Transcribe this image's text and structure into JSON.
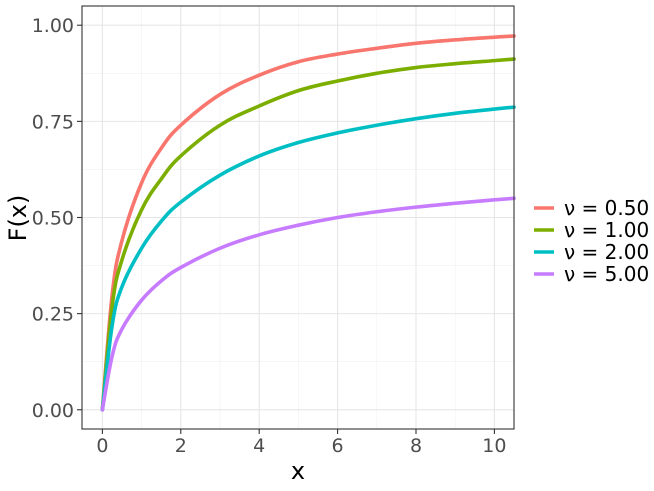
{
  "chart_data": {
    "type": "line",
    "xlabel": "x",
    "ylabel": "F(x)",
    "xlim": [
      -0.52,
      10.5
    ],
    "ylim": [
      -0.05,
      1.05
    ],
    "x_ticks": [
      0,
      2,
      4,
      6,
      8,
      10
    ],
    "x_tick_labels": [
      "0",
      "2",
      "4",
      "6",
      "8",
      "10"
    ],
    "y_ticks": [
      0,
      0.25,
      0.5,
      0.75,
      1.0
    ],
    "y_tick_labels": [
      "0.00",
      "0.25",
      "0.50",
      "0.75",
      "1.00"
    ],
    "grid": true,
    "legend_position": "right",
    "series": [
      {
        "name": "ν = 0.50",
        "color": "#F8766D",
        "x": [
          0,
          0.25,
          0.5,
          1,
          1.5,
          2,
          3,
          4,
          5,
          6,
          7,
          8,
          9,
          10,
          10.5
        ],
        "y": [
          0,
          0.3,
          0.44,
          0.59,
          0.68,
          0.74,
          0.82,
          0.87,
          0.905,
          0.925,
          0.94,
          0.953,
          0.962,
          0.969,
          0.972
        ]
      },
      {
        "name": "ν = 1.00",
        "color": "#7CAE00",
        "x": [
          0,
          0.25,
          0.5,
          1,
          1.5,
          2,
          3,
          4,
          5,
          6,
          7,
          8,
          9,
          10,
          10.5
        ],
        "y": [
          0,
          0.27,
          0.39,
          0.52,
          0.6,
          0.66,
          0.74,
          0.79,
          0.83,
          0.855,
          0.875,
          0.89,
          0.9,
          0.908,
          0.912
        ]
      },
      {
        "name": "ν = 2.00",
        "color": "#00BFC4",
        "x": [
          0,
          0.25,
          0.5,
          1,
          1.5,
          2,
          3,
          4,
          5,
          6,
          7,
          8,
          9,
          10,
          10.5
        ],
        "y": [
          0,
          0.22,
          0.32,
          0.42,
          0.49,
          0.54,
          0.61,
          0.66,
          0.695,
          0.72,
          0.74,
          0.757,
          0.771,
          0.782,
          0.787
        ]
      },
      {
        "name": "ν = 5.00",
        "color": "#C77CFF",
        "x": [
          0,
          0.25,
          0.5,
          1,
          1.5,
          2,
          3,
          4,
          5,
          6,
          7,
          8,
          9,
          10,
          10.5
        ],
        "y": [
          0,
          0.14,
          0.21,
          0.285,
          0.335,
          0.37,
          0.42,
          0.455,
          0.48,
          0.5,
          0.515,
          0.527,
          0.537,
          0.546,
          0.55
        ]
      }
    ]
  }
}
